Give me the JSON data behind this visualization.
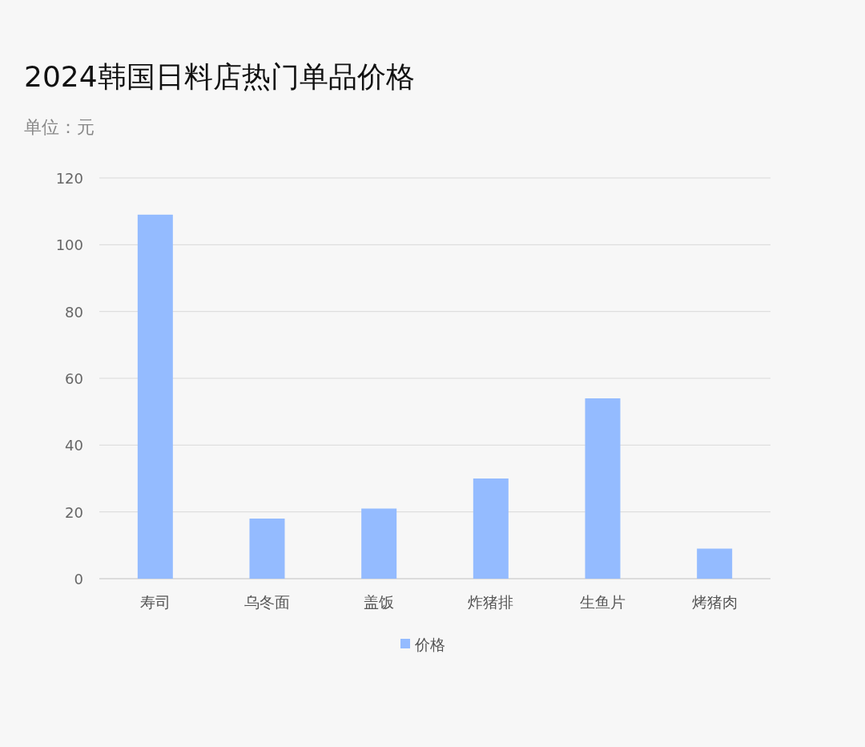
{
  "chart_data": {
    "type": "bar",
    "title": "2024韩国日料店热门单品价格",
    "subtitle": "单位：元",
    "categories": [
      "寿司",
      "乌冬面",
      "盖饭",
      "炸猪排",
      "生鱼片",
      "烤猪肉"
    ],
    "series": [
      {
        "name": "价格",
        "color": "#94bbff",
        "values": [
          109,
          18,
          21,
          30,
          54,
          9
        ]
      }
    ],
    "ylim": [
      0,
      120
    ],
    "yticks": [
      0,
      20,
      40,
      60,
      80,
      100,
      120
    ],
    "grid": "y",
    "legend": "bottom"
  }
}
